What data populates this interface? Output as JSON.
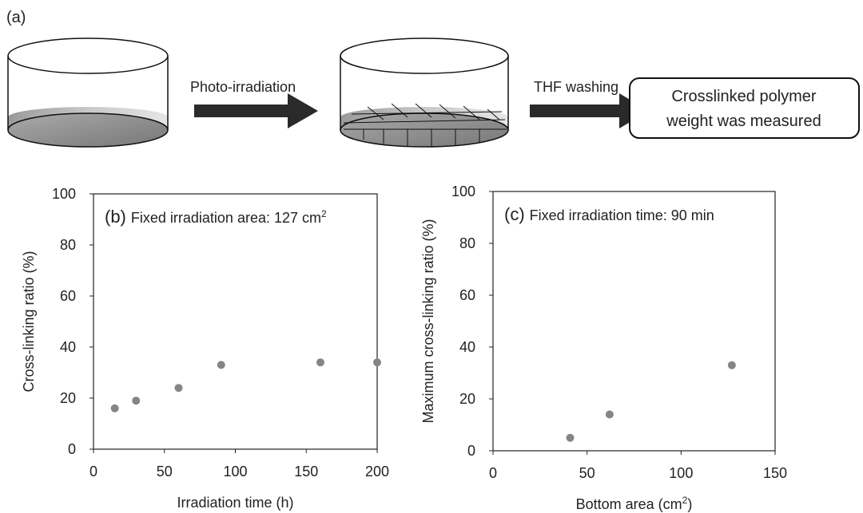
{
  "panel_a": {
    "label": "(a)",
    "step1": "Photo-irradiation",
    "step2": "THF washing",
    "result": [
      "Crosslinked polymer",
      "weight was measured"
    ]
  },
  "chart_data": [
    {
      "type": "scatter",
      "annotation": {
        "label": "(b)",
        "text": "Fixed irradiation area: 127 cm",
        "sup": "2"
      },
      "xlabel": {
        "text": "Irradiation time (h)"
      },
      "ylabel": "Cross-linking ratio (%)",
      "x": [
        15,
        30,
        60,
        90,
        160,
        200
      ],
      "values": [
        16,
        19,
        24,
        33,
        34,
        34
      ],
      "color": "#858585",
      "xlim": [
        0,
        200
      ],
      "xticks": [
        0,
        50,
        100,
        150,
        200
      ],
      "ylim": [
        0,
        100
      ],
      "yticks": [
        0,
        20,
        40,
        60,
        80,
        100
      ]
    },
    {
      "type": "scatter",
      "annotation": {
        "label": "(c)",
        "text": "Fixed irradiation time: 90 min"
      },
      "xlabel": {
        "text": "Bottom area (cm",
        "sup": "2",
        "after": ")"
      },
      "ylabel": "Maximum cross-linking ratio (%)",
      "x": [
        41,
        62,
        127
      ],
      "values": [
        5,
        14,
        33
      ],
      "color": "#858585",
      "xlim": [
        0,
        150
      ],
      "xticks": [
        0,
        50,
        100,
        150
      ],
      "ylim": [
        0,
        100
      ],
      "yticks": [
        0,
        20,
        40,
        60,
        80,
        100
      ]
    }
  ]
}
